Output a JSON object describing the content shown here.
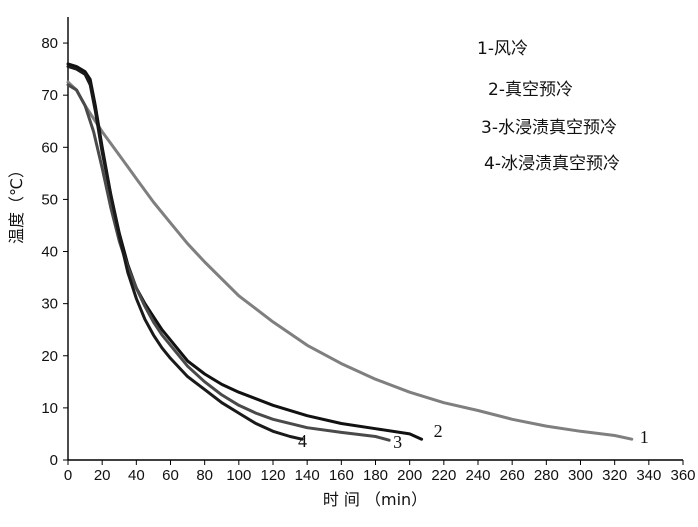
{
  "chart_data": {
    "type": "line",
    "xlabel": "时 间 （min）",
    "ylabel": "温度（℃）",
    "xlim": [
      0,
      360
    ],
    "ylim": [
      0,
      85
    ],
    "x_ticks": [
      0,
      20,
      40,
      60,
      80,
      100,
      120,
      140,
      160,
      180,
      200,
      220,
      240,
      260,
      280,
      300,
      320,
      340,
      360
    ],
    "y_ticks": [
      0,
      10,
      20,
      30,
      40,
      50,
      60,
      70,
      80
    ],
    "grid": false,
    "legend_position": "top-right",
    "legend": [
      "1-风冷",
      "2-真空预冷",
      "3-水浸渍真空预冷",
      "4-冰浸渍真空预冷"
    ],
    "series": [
      {
        "name": "1-风冷",
        "label": "1",
        "color": "#7f7f7f",
        "x": [
          0,
          5,
          10,
          15,
          20,
          30,
          40,
          50,
          60,
          70,
          80,
          100,
          120,
          140,
          160,
          180,
          200,
          220,
          240,
          260,
          280,
          300,
          320,
          330
        ],
        "y": [
          72.5,
          71,
          68,
          65.5,
          63,
          58.5,
          54,
          49.5,
          45.5,
          41.5,
          38,
          31.5,
          26.5,
          22,
          18.5,
          15.5,
          13,
          11,
          9.5,
          7.8,
          6.5,
          5.5,
          4.7,
          4
        ]
      },
      {
        "name": "2-真空预冷",
        "label": "2",
        "color": "#111111",
        "x": [
          0,
          5,
          10,
          13,
          16,
          20,
          25,
          30,
          35,
          40,
          45,
          50,
          55,
          60,
          70,
          80,
          90,
          100,
          120,
          140,
          160,
          180,
          200,
          207
        ],
        "y": [
          76,
          75.5,
          74.5,
          73,
          68,
          60,
          51,
          43.5,
          37.5,
          33,
          30,
          27.5,
          25,
          23,
          19,
          16.5,
          14.5,
          13,
          10.5,
          8.5,
          7,
          6,
          5,
          4
        ]
      },
      {
        "name": "3-水浸渍真空预冷",
        "label": "3",
        "color": "#4a4a4a",
        "x": [
          0,
          5,
          10,
          15,
          20,
          25,
          30,
          35,
          40,
          45,
          50,
          55,
          60,
          70,
          80,
          90,
          100,
          110,
          120,
          140,
          160,
          180,
          188
        ],
        "y": [
          72,
          71,
          68,
          63,
          56,
          48.5,
          42,
          37,
          33,
          29.5,
          26.5,
          24,
          22,
          18,
          15,
          12.5,
          10.5,
          9,
          7.8,
          6.2,
          5.3,
          4.5,
          3.8
        ]
      },
      {
        "name": "4-冰浸渍真空预冷",
        "label": "4",
        "color": "#1a1a1a",
        "x": [
          0,
          5,
          10,
          13,
          16,
          20,
          25,
          30,
          35,
          40,
          45,
          50,
          55,
          60,
          70,
          80,
          90,
          100,
          110,
          120,
          130,
          137
        ],
        "y": [
          75.5,
          75,
          74,
          72,
          67,
          59,
          51,
          43,
          36,
          31,
          27,
          24,
          21.5,
          19.5,
          16,
          13.5,
          11,
          9,
          7,
          5.5,
          4.5,
          4
        ]
      }
    ]
  }
}
